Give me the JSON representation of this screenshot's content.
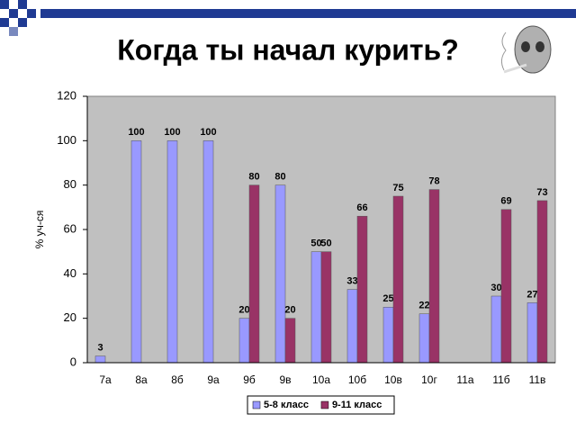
{
  "chart_data": {
    "type": "bar",
    "title": "Когда ты начал курить?",
    "y_label": "% уч-ся",
    "categories": [
      "7а",
      "8а",
      "8б",
      "9а",
      "9б",
      "9в",
      "10а",
      "10б",
      "10в",
      "10г",
      "11а",
      "11б",
      "11в"
    ],
    "series": [
      {
        "name": "5-8 класс",
        "color": "#9999ff",
        "values": [
          3,
          100,
          100,
          100,
          20,
          80,
          50,
          33,
          25,
          22,
          null,
          30,
          27
        ]
      },
      {
        "name": "9-11 класс",
        "color": "#993366",
        "values": [
          null,
          null,
          null,
          null,
          80,
          20,
          50,
          66,
          75,
          78,
          null,
          69,
          73
        ]
      }
    ],
    "ylim": [
      0,
      120
    ],
    "yticks": [
      0,
      20,
      40,
      60,
      80,
      100,
      120
    ],
    "grid": false,
    "legend": "bottom"
  }
}
